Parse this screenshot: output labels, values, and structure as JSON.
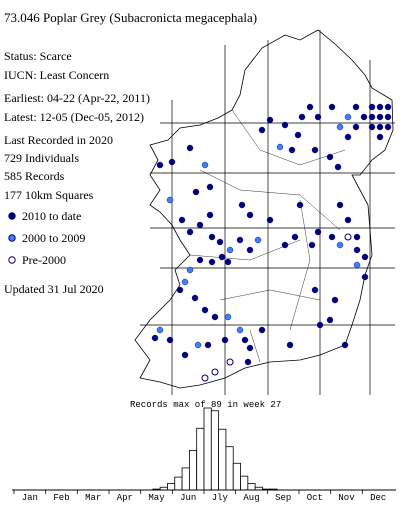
{
  "header": {
    "title": "73.046 Poplar Grey (Subacronicta megacephala)"
  },
  "info": [
    "Status: Scarce",
    "IUCN: Least Concern",
    "Earliest: 04-22 (Apr-22, 2011)",
    "Latest: 12-05 (Dec-05, 2012)",
    "Last Recorded in 2020",
    "729 Individuals",
    "585 Records",
    "177 10km Squares"
  ],
  "legend": [
    {
      "label": "2010 to date",
      "color": "#00007f"
    },
    {
      "label": "2000 to 2009",
      "color": "#3f7fff"
    },
    {
      "label": "Pre-2000",
      "color": "#ffffff"
    }
  ],
  "updated": "Updated 31 Jul 2020",
  "chart_data": {
    "type": "bar",
    "title": "Records max of 89 in week 27",
    "months": [
      "Jan",
      "Feb",
      "Mar",
      "Apr",
      "May",
      "Jun",
      "Jly",
      "Aug",
      "Sep",
      "Oct",
      "Nov",
      "Dec"
    ],
    "values": [
      0,
      0,
      0,
      0,
      0,
      0,
      0,
      0,
      0,
      0,
      0,
      0,
      0,
      0,
      0,
      0,
      0,
      0,
      0,
      1,
      3,
      7,
      14,
      24,
      43,
      67,
      89,
      86,
      66,
      47,
      29,
      15,
      7,
      3,
      1,
      1,
      0,
      0,
      0,
      0,
      0,
      0,
      0,
      0,
      0,
      0,
      0,
      0,
      0,
      0,
      0,
      0
    ],
    "ylim": [
      0,
      89
    ],
    "color": "#ffffff"
  }
}
